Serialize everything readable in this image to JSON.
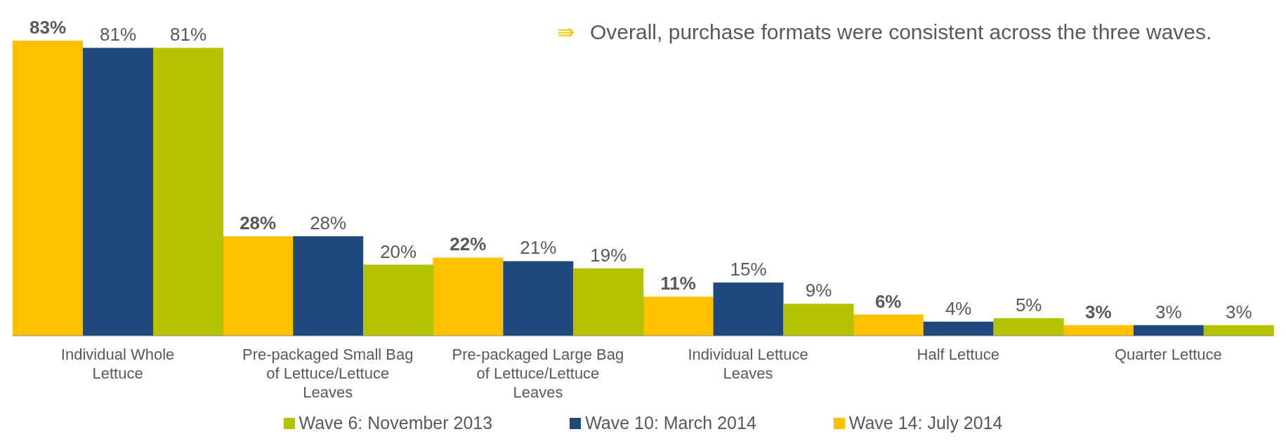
{
  "chart_data": {
    "type": "bar",
    "categories": [
      "Individual Whole Lettuce",
      "Pre-packaged Small Bag of Lettuce/Lettuce Leaves",
      "Pre-packaged Large Bag of Lettuce/Lettuce Leaves",
      "Individual Lettuce Leaves",
      "Half Lettuce",
      "Quarter Lettuce"
    ],
    "series": [
      {
        "name": "Wave 14: July 2014",
        "color": "#ffc000",
        "values": [
          83,
          28,
          22,
          11,
          6,
          3
        ],
        "value_labels": [
          "83%",
          "28%",
          "22%",
          "11%",
          "6%",
          "3%"
        ]
      },
      {
        "name": "Wave 10: March 2014",
        "color": "#1f497d",
        "values": [
          81,
          28,
          21,
          15,
          4,
          3
        ],
        "value_labels": [
          "81%",
          "28%",
          "21%",
          "15%",
          "4%",
          "3%"
        ]
      },
      {
        "name": "Wave 6: November 2013",
        "color": "#b5c200",
        "values": [
          81,
          20,
          19,
          9,
          5,
          3
        ],
        "value_labels": [
          "81%",
          "20%",
          "19%",
          "9%",
          "5%",
          "3%"
        ]
      }
    ],
    "annotations": [
      "⇛ Overall, purchase formats were consistent across the three waves."
    ],
    "legend": "bottom"
  }
}
